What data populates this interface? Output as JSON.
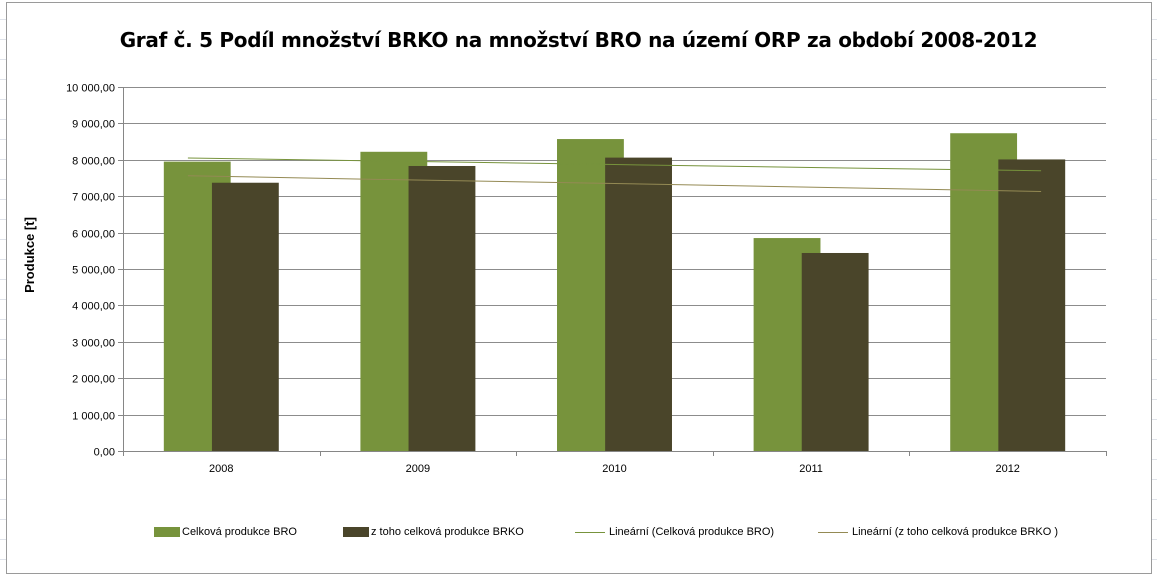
{
  "chart_data": {
    "type": "bar",
    "title": "Graf č. 5 Podíl množství BRKO na množství BRO na území ORP za období 2008-2012",
    "xlabel": "",
    "ylabel": "Produkce [t]",
    "categories": [
      "2008",
      "2009",
      "2010",
      "2011",
      "2012"
    ],
    "ylim": [
      0,
      10000
    ],
    "yticks": [
      0,
      1000,
      2000,
      3000,
      4000,
      5000,
      6000,
      7000,
      8000,
      9000,
      10000
    ],
    "ytick_labels": [
      "0,00",
      "1 000,00",
      "2 000,00",
      "3 000,00",
      "4 000,00",
      "5 000,00",
      "6 000,00",
      "7 000,00",
      "8 000,00",
      "9 000,00",
      "10 000,00"
    ],
    "grid": true,
    "legend_position": "bottom",
    "series": [
      {
        "name": "Celková produkce BRO",
        "type": "bar",
        "color": "#77933c",
        "values": [
          7950,
          8220,
          8570,
          5850,
          8730
        ]
      },
      {
        "name": "z toho celková produkce BRKO",
        "type": "bar",
        "color": "#4a452a",
        "values": [
          7370,
          7830,
          8060,
          5440,
          8010
        ]
      }
    ],
    "trendlines": [
      {
        "name": "Lineární (Celková produkce BRO)",
        "type": "linear",
        "color": "#77933c",
        "values": [
          8050,
          7960,
          7870,
          7780,
          7700
        ]
      },
      {
        "name": "Lineární (z toho celková produkce BRKO )",
        "type": "linear",
        "color": "#948a54",
        "values": [
          7560,
          7450,
          7350,
          7240,
          7130
        ]
      }
    ]
  }
}
